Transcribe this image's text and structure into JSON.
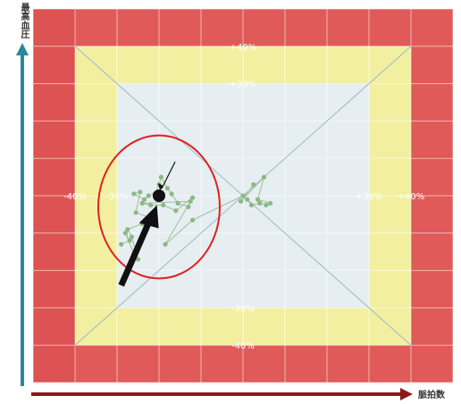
{
  "chart_data": {
    "type": "scatter",
    "xlabel": "脈拍数",
    "ylabel": "最高血圧",
    "xlim": [
      -50,
      50
    ],
    "ylim": [
      -50,
      50
    ],
    "grid": true,
    "zones": [
      {
        "min_pct": 40,
        "max_pct": 50,
        "color": "#e05a5a"
      },
      {
        "min_pct": 30,
        "max_pct": 40,
        "color": "#f2f0a0"
      },
      {
        "min_pct": 0,
        "max_pct": 30,
        "color": "#e6eef2"
      }
    ],
    "x_tick_labels": [
      {
        "value": -40,
        "label": "-40%"
      },
      {
        "value": -30,
        "label": "-30%"
      },
      {
        "value": 30,
        "label": "+30%"
      },
      {
        "value": 40,
        "label": "+40%"
      }
    ],
    "y_tick_labels": [
      {
        "value": 40,
        "label": "+40%"
      },
      {
        "value": 30,
        "label": "+30%"
      },
      {
        "value": -30,
        "label": "-30%"
      },
      {
        "value": -40,
        "label": "-40%"
      }
    ],
    "series": [
      {
        "points": [
          [
            -29.0,
            -13.0
          ],
          [
            -27.0,
            -12.0
          ],
          [
            -28.0,
            -10.0
          ],
          [
            -26.0,
            -15.5
          ],
          [
            -25.0,
            -17.0
          ],
          [
            -26.5,
            -11.0
          ],
          [
            -27.5,
            -9.0
          ],
          [
            -24.0,
            -7.5
          ],
          [
            -22.0,
            -6.0
          ],
          [
            -25.5,
            -4.5
          ],
          [
            -24.5,
            1.0
          ],
          [
            -26.0,
            0.5
          ],
          [
            -23.5,
            -1.0
          ],
          [
            -22.5,
            0.0
          ],
          [
            -21.0,
            0.5
          ],
          [
            -20.0,
            3.0
          ],
          [
            -19.5,
            5.0
          ],
          [
            -18.0,
            2.0
          ],
          [
            -17.0,
            0.5
          ],
          [
            -15.5,
            -2.0
          ],
          [
            -13.0,
            -3.0
          ],
          [
            -12.0,
            -0.5
          ],
          [
            -16.0,
            -4.0
          ],
          [
            -19.0,
            -2.5
          ],
          [
            -22.0,
            -2.5
          ],
          [
            -24.0,
            -2.0
          ],
          [
            -12.5,
            -1.5
          ],
          [
            -18.5,
            -13.0
          ],
          [
            -12.0,
            -6.5
          ],
          [
            0.0,
            0.0
          ],
          [
            1.0,
            -1.0
          ],
          [
            2.0,
            -2.5
          ],
          [
            4.0,
            -2.0
          ],
          [
            5.5,
            -2.5
          ],
          [
            6.5,
            -2.0
          ],
          [
            3.5,
            -1.0
          ],
          [
            5.0,
            5.0
          ],
          [
            -0.5,
            -1.5
          ],
          [
            2.5,
            3.0
          ]
        ]
      }
    ],
    "highlight_point": [
      -20.0,
      0.0
    ]
  }
}
